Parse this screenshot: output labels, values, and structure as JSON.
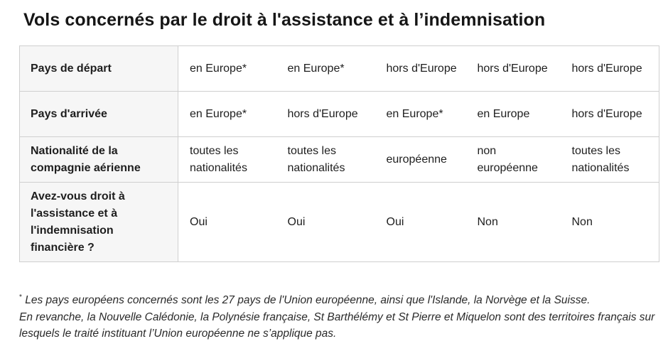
{
  "title": "Vols concernés par le droit à l'assistance et à l’indemnisation",
  "table": {
    "rows": [
      {
        "header": "Pays de départ",
        "cells": [
          "en Europe*",
          "en Europe*",
          "hors d'Europe",
          "hors d'Europe",
          "hors d'Europe"
        ]
      },
      {
        "header": "Pays d'arrivée",
        "cells": [
          "en Europe*",
          "hors d'Europe",
          "en Europe*",
          "en Europe",
          "hors d'Europe"
        ]
      },
      {
        "header": "Nationalité de la compagnie aérienne",
        "cells": [
          "toutes les nationalités",
          "toutes les nationalités",
          "européenne",
          "non européenne",
          "toutes les nationalités"
        ]
      },
      {
        "header": "Avez-vous droit à l'assistance et à l'indemnisation financière ?",
        "cells": [
          "Oui",
          "Oui",
          "Oui",
          "Non",
          "Non"
        ]
      }
    ]
  },
  "footnote": {
    "marker": "*",
    "line1": "Les pays européens concernés sont les 27 pays de l'Union européenne, ainsi que l'Islande, la Norvège et la Suisse.",
    "line2": "En revanche, la Nouvelle Calédonie, la Polynésie française, St Barthélémy et St Pierre et Miquelon sont des territoires français sur lesquels le traité instituant l’Union européenne ne s’applique pas."
  }
}
